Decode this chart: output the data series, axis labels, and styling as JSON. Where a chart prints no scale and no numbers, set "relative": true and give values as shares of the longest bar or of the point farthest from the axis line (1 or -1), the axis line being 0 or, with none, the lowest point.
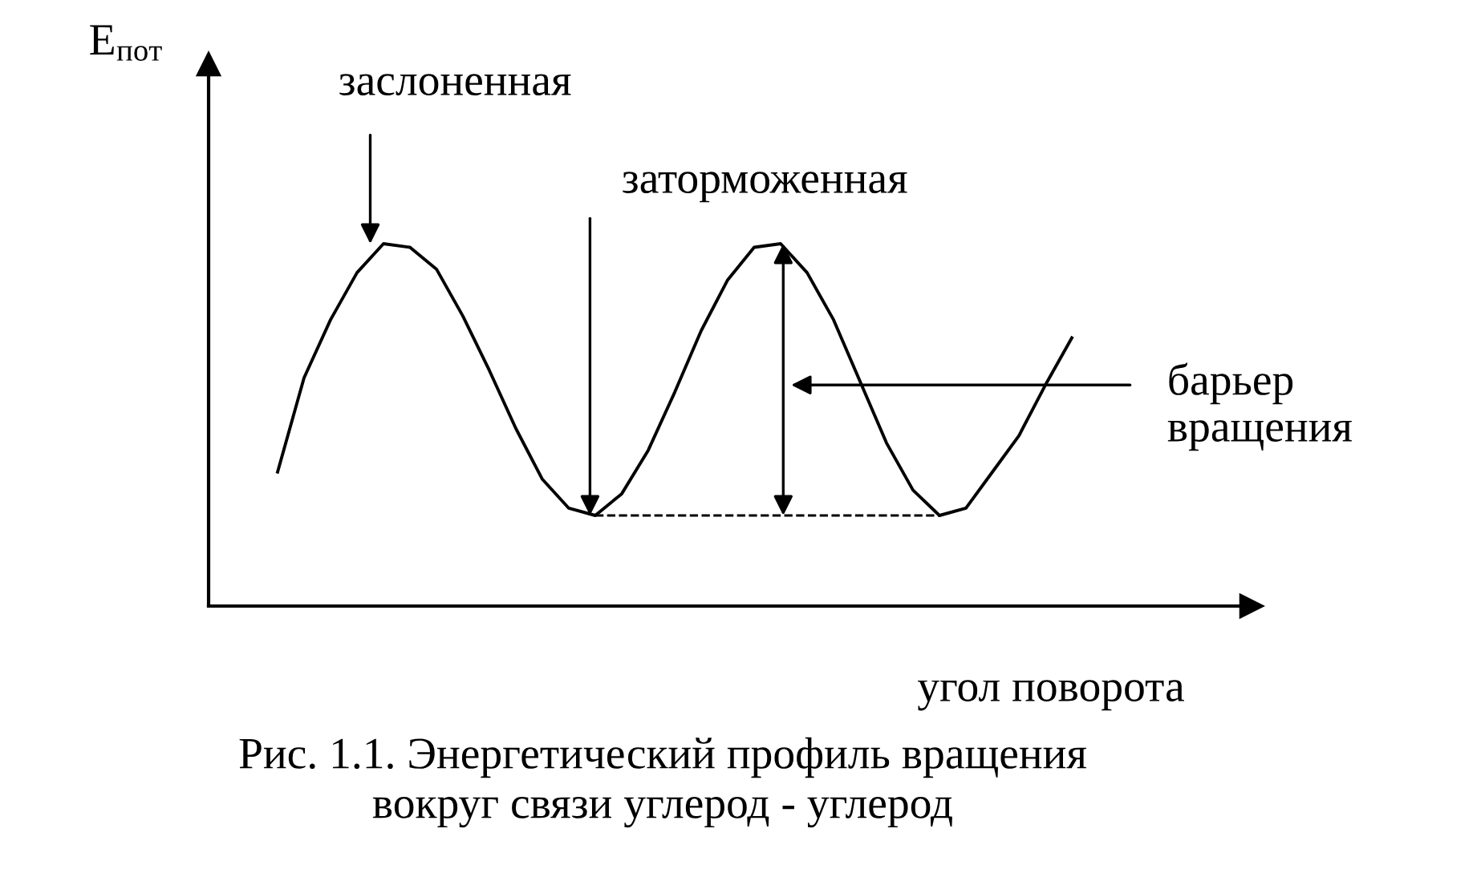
{
  "chart_data": {
    "type": "line",
    "relative": true,
    "ylabel": "E$_{пот}$",
    "xlabel": "угол поворота",
    "categories": [
      null,
      null,
      null,
      null,
      null,
      null,
      null,
      null,
      null,
      null,
      null,
      null,
      null,
      null,
      null,
      null,
      null,
      null,
      null,
      null,
      null,
      null,
      null,
      null,
      null,
      null,
      null,
      null,
      null,
      null,
      null
    ],
    "series": [
      {
        "color": "#000000",
        "values": [
          0.37,
          0.63,
          0.79,
          0.92,
          1.0,
          0.99,
          0.93,
          0.8,
          0.65,
          0.49,
          0.35,
          0.27,
          0.25,
          0.31,
          0.43,
          0.59,
          0.76,
          0.9,
          0.99,
          1.0,
          0.92,
          0.79,
          0.62,
          0.45,
          0.32,
          0.25,
          0.27,
          0.37,
          0.47,
          0.61,
          0.74
        ]
      },
      {
        "color": "#000000",
        "line_style": "dashed",
        "values": [
          null,
          null,
          null,
          null,
          null,
          null,
          null,
          null,
          null,
          null,
          null,
          null,
          0.25,
          0.25,
          0.25,
          0.25,
          0.25,
          0.25,
          0.25,
          0.25,
          0.25,
          0.25,
          0.25,
          0.25,
          0.25,
          0.25,
          null,
          null,
          null,
          null,
          null
        ]
      }
    ],
    "annotations": [
      "заслоненная",
      "заторможенная",
      "барьер\nвращения",
      "Рис. 1.1. Энергетический профиль вращения\nвокруг связи углерод - углерод"
    ],
    "legend": false,
    "marker": "none",
    "line_style": "solid",
    "tick_labels": false
  }
}
